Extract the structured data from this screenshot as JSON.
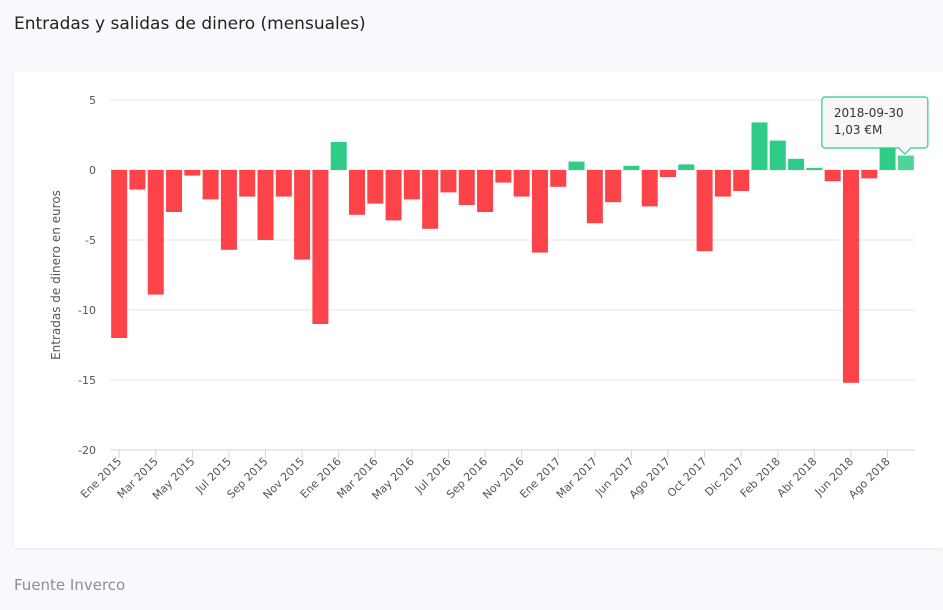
{
  "chart_data": {
    "type": "bar",
    "title": "Entradas y salidas de dinero (mensuales)",
    "ylabel": "Entradas de dinero en euros",
    "source": "Fuente Inverco",
    "categories": [
      "Ene 2015",
      null,
      "Mar 2015",
      null,
      "May 2015",
      null,
      "Jul 2015",
      null,
      "Sep 2015",
      null,
      "Nov 2015",
      null,
      "Ene 2016",
      null,
      "Mar 2016",
      null,
      "May 2016",
      null,
      "Jul 2016",
      null,
      "Sep 2016",
      null,
      "Nov 2016",
      null,
      "Ene 2017",
      null,
      "Mar 2017",
      null,
      "Jun 2017",
      null,
      "Ago 2017",
      null,
      "Oct 2017",
      null,
      "Dic 2017",
      null,
      "Feb 2018",
      null,
      "Abr 2018",
      null,
      "Jun 2018",
      null,
      "Ago 2018",
      null
    ],
    "values": [
      -12.0,
      -1.4,
      -8.9,
      -3.0,
      -0.4,
      -2.1,
      -5.7,
      -1.9,
      -5.0,
      -1.9,
      -6.4,
      -11.0,
      2.0,
      -3.2,
      -2.4,
      -3.6,
      -2.1,
      -4.2,
      -1.6,
      -2.5,
      -3.0,
      -0.9,
      -1.9,
      -5.9,
      -1.2,
      0.6,
      -3.8,
      -2.3,
      0.3,
      -2.6,
      -0.5,
      0.4,
      -5.8,
      -1.9,
      -1.5,
      3.4,
      2.1,
      0.8,
      0.15,
      -0.8,
      -15.2,
      -0.6,
      1.6,
      1.03
    ],
    "colors": {
      "positive": "#2ecc87",
      "negative": "#fc4349"
    },
    "ylim": [
      -20,
      5
    ],
    "yticks": [
      -20,
      -15,
      -10,
      -5,
      0,
      5
    ],
    "grid": true,
    "tooltip": {
      "date": "2018-09-30",
      "value": "1,03 €M"
    }
  }
}
